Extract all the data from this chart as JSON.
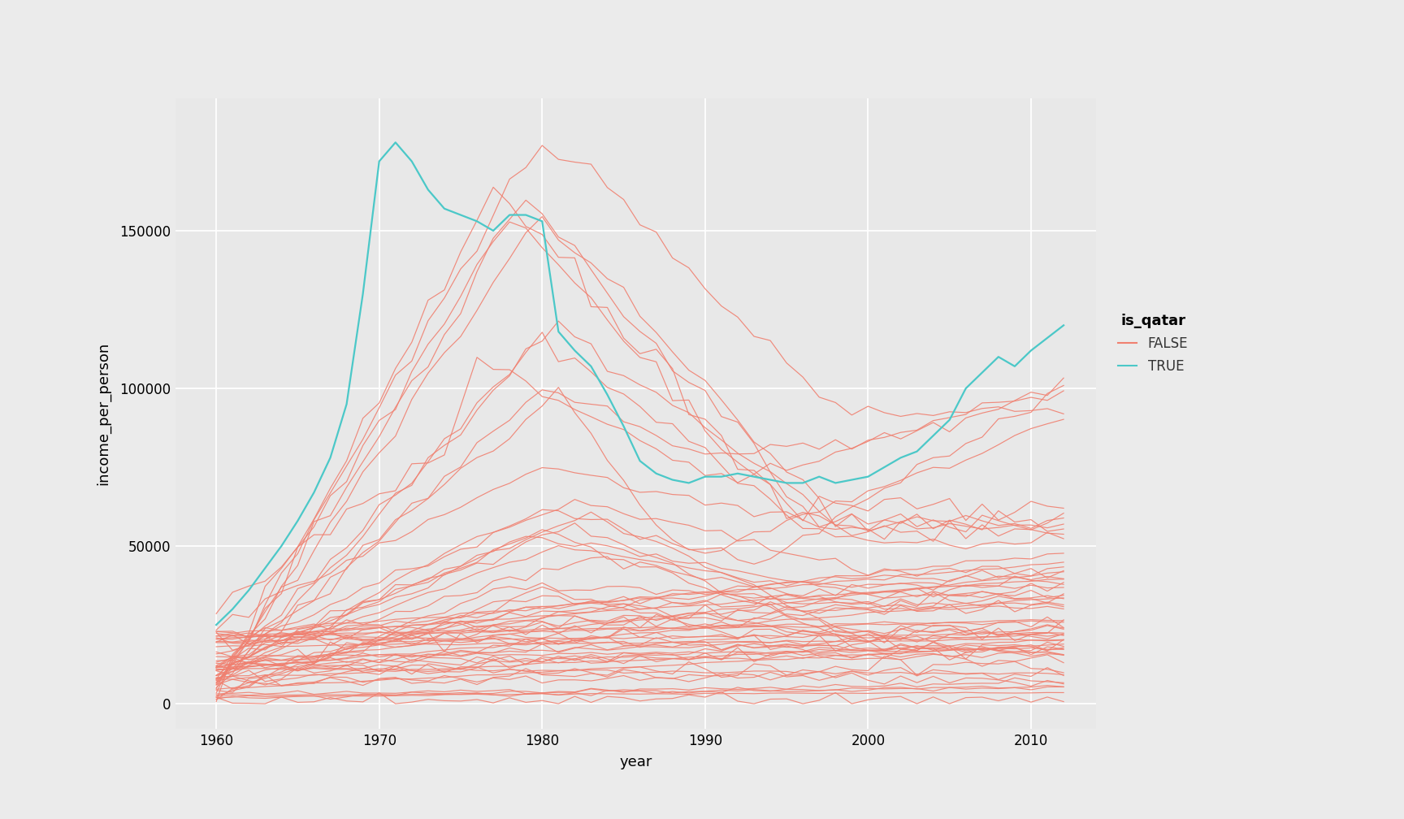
{
  "qatar_years": [
    1960,
    1961,
    1962,
    1963,
    1964,
    1965,
    1966,
    1967,
    1968,
    1969,
    1970,
    1971,
    1972,
    1973,
    1974,
    1975,
    1976,
    1977,
    1978,
    1979,
    1980,
    1981,
    1982,
    1983,
    1984,
    1985,
    1986,
    1987,
    1988,
    1989,
    1990,
    1991,
    1992,
    1993,
    1994,
    1995,
    1996,
    1997,
    1998,
    1999,
    2000,
    2001,
    2002,
    2003,
    2004,
    2005,
    2006,
    2007,
    2008,
    2009,
    2010,
    2011,
    2012
  ],
  "qatar_values": [
    25000,
    30000,
    36000,
    43000,
    50000,
    58000,
    67000,
    78000,
    95000,
    130000,
    172000,
    178000,
    172000,
    163000,
    157000,
    155000,
    153000,
    150000,
    155000,
    155000,
    153000,
    118000,
    112000,
    107000,
    98000,
    88000,
    77000,
    73000,
    71000,
    70000,
    72000,
    72000,
    73000,
    72000,
    71000,
    70000,
    70000,
    72000,
    70000,
    71000,
    72000,
    75000,
    78000,
    80000,
    85000,
    90000,
    100000,
    105000,
    110000,
    107000,
    112000,
    116000,
    120000
  ],
  "false_color": "#F08070",
  "true_color": "#4BC8C8",
  "bg_color": "#EBEBEB",
  "panel_bg": "#E8E8E8",
  "grid_color": "#FFFFFF",
  "ylabel": "income_per_person",
  "xlabel": "year",
  "legend_title": "is_qatar",
  "legend_false": "FALSE",
  "legend_true": "TRUE",
  "ytick_vals": [
    0,
    50000,
    100000,
    150000
  ],
  "ytick_labels": [
    "0",
    "50000",
    "100000",
    "150000"
  ],
  "xtick_vals": [
    1960,
    1970,
    1980,
    1990,
    2000,
    2010
  ],
  "xlim": [
    1957.5,
    2014
  ],
  "ylim": [
    -8000,
    192000
  ]
}
